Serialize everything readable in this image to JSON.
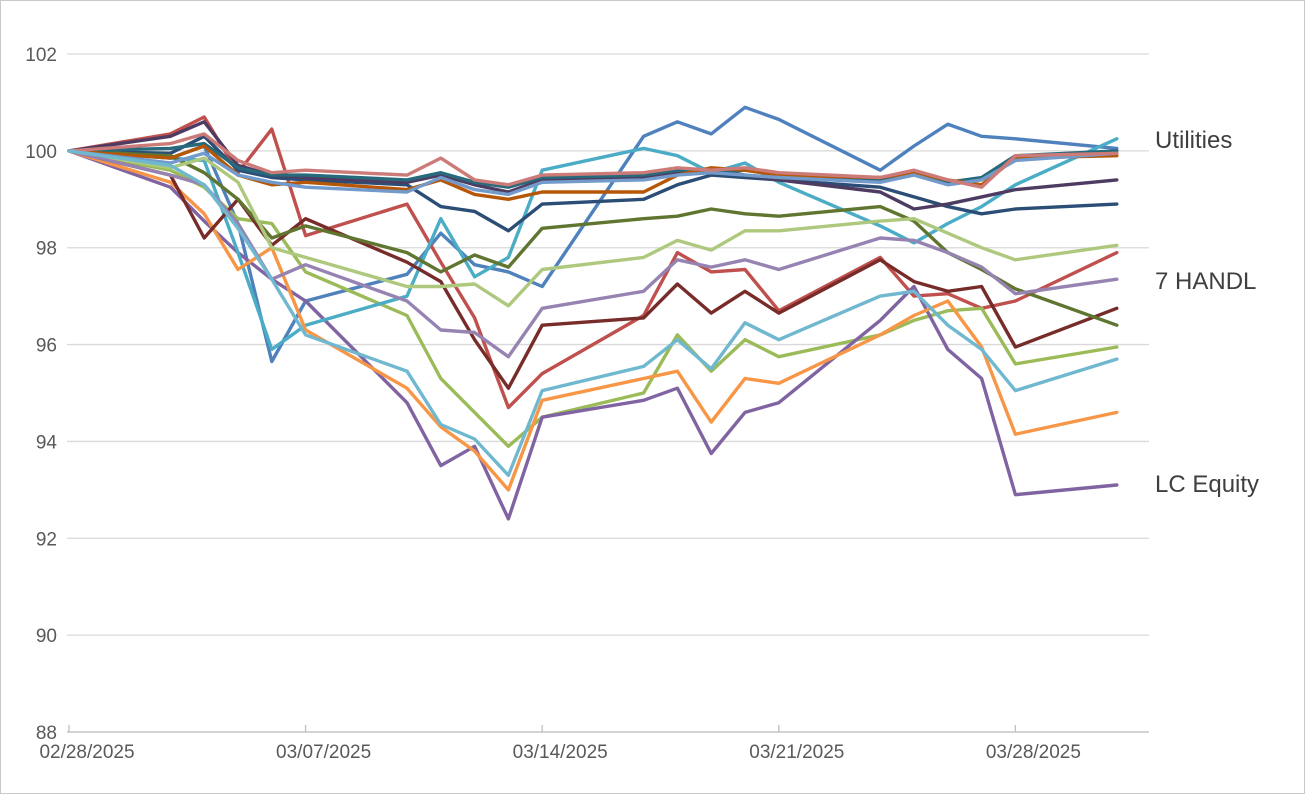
{
  "chart_data": {
    "type": "line",
    "title": "",
    "xlabel": "",
    "ylabel": "",
    "ylim": [
      88,
      102
    ],
    "y_ticks": [
      88,
      90,
      92,
      94,
      96,
      98,
      100,
      102
    ],
    "x": [
      "02/28",
      "03/03",
      "03/04",
      "03/05",
      "03/06",
      "03/07",
      "03/10",
      "03/11",
      "03/12",
      "03/13",
      "03/14",
      "03/17",
      "03/18",
      "03/19",
      "03/20",
      "03/21",
      "03/24",
      "03/25",
      "03/26",
      "03/27",
      "03/28",
      "03/31"
    ],
    "x_tick_labels": [
      "02/28/2025",
      "03/07/2025",
      "03/14/2025",
      "03/21/2025",
      "03/28/2025"
    ],
    "x_tick_days": [
      0,
      7,
      14,
      21,
      28
    ],
    "grid": "horizontal",
    "legend_position": "none",
    "annotations": [
      {
        "id": "utilities-label",
        "text": "Utilities",
        "y": 100.2
      },
      {
        "id": "handl7-label",
        "text": "7 HANDL",
        "y": 97.3
      },
      {
        "id": "lc-equity-label",
        "text": "LC Equity",
        "y": 93.1
      }
    ],
    "series": [
      {
        "name": "blue",
        "color": "#4F81BD",
        "values": [
          100,
          99.85,
          100.1,
          98.5,
          95.65,
          96.9,
          97.45,
          98.3,
          97.65,
          97.5,
          97.2,
          100.3,
          100.6,
          100.35,
          100.9,
          100.65,
          99.6,
          100.1,
          100.55,
          100.3,
          100.25,
          100.05
        ]
      },
      {
        "name": "red",
        "color": "#C0504D",
        "values": [
          100,
          100.35,
          100.7,
          99.55,
          100.45,
          98.25,
          98.9,
          97.7,
          96.55,
          94.7,
          95.4,
          96.6,
          97.9,
          97.5,
          97.55,
          96.7,
          97.8,
          97.0,
          97.05,
          96.75,
          96.9,
          97.9
        ]
      },
      {
        "name": "green",
        "color": "#9BBB59",
        "values": [
          100,
          99.6,
          99.25,
          98.6,
          98.5,
          97.5,
          96.6,
          95.3,
          94.6,
          93.9,
          94.5,
          95.0,
          96.2,
          95.45,
          96.1,
          95.75,
          96.2,
          96.5,
          96.7,
          96.75,
          95.6,
          95.95
        ]
      },
      {
        "name": "purple-lc-equity",
        "color": "#8064A2",
        "values": [
          100,
          99.25,
          98.55,
          97.9,
          97.35,
          96.9,
          94.8,
          93.5,
          93.9,
          92.4,
          94.5,
          94.85,
          95.1,
          93.75,
          94.6,
          94.8,
          96.5,
          97.2,
          95.9,
          95.3,
          92.9,
          93.1
        ]
      },
      {
        "name": "cyan-utilities",
        "color": "#4BACC6",
        "values": [
          100,
          99.85,
          99.8,
          97.9,
          95.9,
          96.4,
          97.0,
          98.6,
          97.4,
          97.8,
          99.6,
          100.05,
          99.9,
          99.55,
          99.75,
          99.35,
          98.45,
          98.1,
          98.5,
          98.85,
          99.3,
          100.25
        ]
      },
      {
        "name": "orange",
        "color": "#F79646",
        "values": [
          100,
          99.35,
          98.7,
          97.55,
          98.0,
          96.3,
          95.1,
          94.3,
          93.8,
          93.0,
          94.85,
          95.3,
          95.45,
          94.4,
          95.3,
          95.2,
          96.2,
          96.6,
          96.9,
          95.95,
          94.15,
          94.6
        ]
      },
      {
        "name": "navy",
        "color": "#2C4D75",
        "values": [
          100,
          99.95,
          100.3,
          99.6,
          99.45,
          99.4,
          99.3,
          98.85,
          98.75,
          98.35,
          98.9,
          99.0,
          99.3,
          99.5,
          99.45,
          99.4,
          99.25,
          99.05,
          98.85,
          98.7,
          98.8,
          98.9
        ]
      },
      {
        "name": "maroon",
        "color": "#772C2A",
        "values": [
          100,
          99.5,
          98.2,
          99.0,
          98.05,
          98.6,
          97.7,
          97.3,
          96.1,
          95.1,
          96.4,
          96.55,
          97.25,
          96.65,
          97.1,
          96.65,
          97.75,
          97.3,
          97.1,
          97.2,
          95.95,
          96.75
        ]
      },
      {
        "name": "olive",
        "color": "#5F7530",
        "values": [
          100,
          99.9,
          99.55,
          99.0,
          98.2,
          98.45,
          97.9,
          97.5,
          97.85,
          97.6,
          98.4,
          98.6,
          98.65,
          98.8,
          98.7,
          98.65,
          98.85,
          98.55,
          97.9,
          97.55,
          97.15,
          96.4
        ]
      },
      {
        "name": "dark-purple",
        "color": "#4D3B62",
        "values": [
          100,
          100.3,
          100.6,
          99.7,
          99.5,
          99.45,
          99.35,
          99.5,
          99.3,
          99.15,
          99.4,
          99.45,
          99.55,
          99.6,
          99.5,
          99.4,
          99.15,
          98.8,
          98.9,
          99.05,
          99.2,
          99.4
        ]
      },
      {
        "name": "teal",
        "color": "#276A7C",
        "values": [
          100,
          100.05,
          100.15,
          99.65,
          99.5,
          99.5,
          99.4,
          99.55,
          99.35,
          99.25,
          99.45,
          99.5,
          99.6,
          99.55,
          99.6,
          99.5,
          99.4,
          99.55,
          99.35,
          99.45,
          99.9,
          100.0
        ]
      },
      {
        "name": "burnt-orange",
        "color": "#B65708",
        "values": [
          100,
          99.85,
          100.1,
          99.5,
          99.3,
          99.35,
          99.2,
          99.4,
          99.1,
          99.0,
          99.15,
          99.15,
          99.5,
          99.65,
          99.6,
          99.5,
          99.45,
          99.55,
          99.4,
          99.3,
          99.85,
          99.9
        ]
      },
      {
        "name": "light-blue",
        "color": "#729ACA",
        "values": [
          100,
          99.75,
          99.95,
          99.5,
          99.35,
          99.25,
          99.15,
          99.45,
          99.2,
          99.1,
          99.35,
          99.4,
          99.5,
          99.55,
          99.5,
          99.45,
          99.35,
          99.5,
          99.3,
          99.4,
          99.8,
          99.95
        ]
      },
      {
        "name": "salmon",
        "color": "#CC7B78",
        "values": [
          100,
          100.15,
          100.35,
          99.8,
          99.55,
          99.6,
          99.5,
          99.85,
          99.4,
          99.3,
          99.5,
          99.55,
          99.65,
          99.6,
          99.65,
          99.55,
          99.45,
          99.6,
          99.4,
          99.25,
          99.9,
          99.95
        ]
      },
      {
        "name": "lime",
        "color": "#AEC97E",
        "values": [
          100,
          99.65,
          99.85,
          99.35,
          98.0,
          97.8,
          97.2,
          97.2,
          97.25,
          96.8,
          97.55,
          97.8,
          98.15,
          97.95,
          98.35,
          98.35,
          98.55,
          98.6,
          98.3,
          98.0,
          97.75,
          98.05
        ]
      },
      {
        "name": "lavender-7handl",
        "color": "#9683B2",
        "values": [
          100,
          99.5,
          99.3,
          98.5,
          97.35,
          97.65,
          96.9,
          96.3,
          96.25,
          95.75,
          96.75,
          97.1,
          97.75,
          97.6,
          97.75,
          97.55,
          98.2,
          98.15,
          97.9,
          97.6,
          97.05,
          97.35
        ]
      },
      {
        "name": "light-cyan",
        "color": "#6FB8D0",
        "values": [
          100,
          99.7,
          99.3,
          98.4,
          97.35,
          96.2,
          95.45,
          94.35,
          94.05,
          93.3,
          95.05,
          95.55,
          96.1,
          95.5,
          96.45,
          96.1,
          97.0,
          97.1,
          96.4,
          95.9,
          95.05,
          95.7
        ]
      }
    ]
  },
  "theme": {
    "background": "#FFFFFF",
    "frame_border": "#C9C9C9",
    "gridline": "#D9D9D9",
    "axis_line": "#BFBFBF",
    "tick_text": "#595959",
    "annotation_text": "#3F3F3F"
  }
}
